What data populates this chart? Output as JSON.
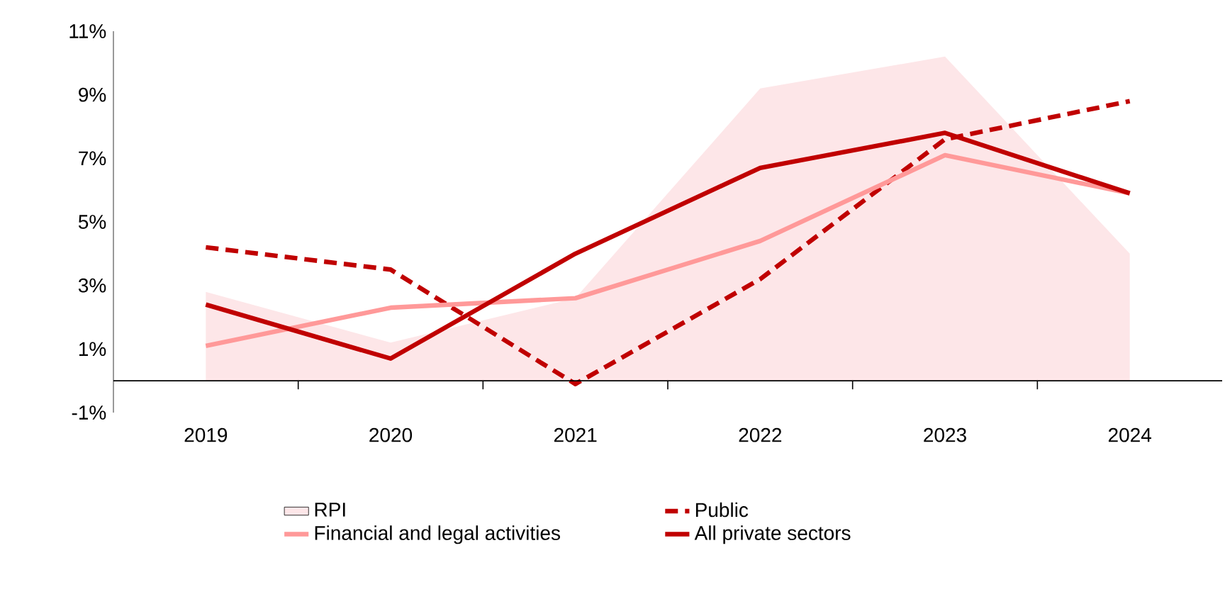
{
  "chart_data": {
    "type": "line",
    "categories": [
      "2019",
      "2020",
      "2021",
      "2022",
      "2023",
      "2024"
    ],
    "ylim": [
      -1,
      11
    ],
    "yticks": [
      {
        "value": -1,
        "label": "-1%"
      },
      {
        "value": 1,
        "label": "1%"
      },
      {
        "value": 3,
        "label": "3%"
      },
      {
        "value": 5,
        "label": "5%"
      },
      {
        "value": 7,
        "label": "7%"
      },
      {
        "value": 9,
        "label": "9%"
      },
      {
        "value": 11,
        "label": "11%"
      }
    ],
    "legend": "bottom",
    "series": [
      {
        "name": "RPI",
        "type": "area",
        "color": "#fde6e8",
        "values": [
          2.8,
          1.2,
          2.6,
          9.2,
          10.2,
          4.0
        ]
      },
      {
        "name": "Public",
        "color": "#c00000",
        "line_style": "dashed",
        "values": [
          4.2,
          3.5,
          -0.1,
          3.2,
          7.6,
          8.8
        ]
      },
      {
        "name": "Financial and legal activities",
        "color": "#ff9999",
        "values": [
          1.1,
          2.3,
          2.6,
          4.4,
          7.1,
          5.9
        ]
      },
      {
        "name": "All private sectors",
        "color": "#c00000",
        "values": [
          2.4,
          0.7,
          4.0,
          6.7,
          7.8,
          5.9
        ]
      }
    ]
  }
}
